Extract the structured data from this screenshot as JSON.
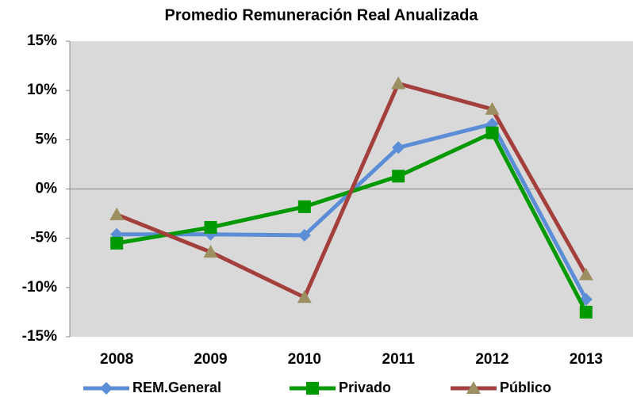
{
  "chart_data": {
    "type": "line",
    "title": "Promedio Remuneración Real Anualizada",
    "categories": [
      "2008",
      "2009",
      "2010",
      "2011",
      "2012",
      "2013"
    ],
    "series": [
      {
        "name": "REM.General",
        "color": "#5b8ed6",
        "marker_color": "#5b8ed6",
        "marker": "diamond",
        "values": [
          -4.6,
          -4.6,
          -4.7,
          4.2,
          6.6,
          -11.2
        ]
      },
      {
        "name": "Privado",
        "color": "#009a00",
        "marker_color": "#009a00",
        "marker": "square",
        "values": [
          -5.5,
          -3.9,
          -1.8,
          1.3,
          5.7,
          -12.5
        ]
      },
      {
        "name": "Público",
        "color": "#a3403d",
        "marker_color": "#9c8f62",
        "marker": "triangle",
        "values": [
          -2.6,
          -6.4,
          -11.0,
          10.7,
          8.1,
          -8.7
        ]
      }
    ],
    "ylim": [
      -15,
      15
    ],
    "yticks": [
      {
        "value": -15,
        "label": "-15%"
      },
      {
        "value": -10,
        "label": "-10%"
      },
      {
        "value": -5,
        "label": "-5%"
      },
      {
        "value": 0,
        "label": "0%"
      },
      {
        "value": 5,
        "label": "5%"
      },
      {
        "value": 10,
        "label": "10%"
      },
      {
        "value": 15,
        "label": "15%"
      }
    ],
    "legend": "bottom"
  }
}
